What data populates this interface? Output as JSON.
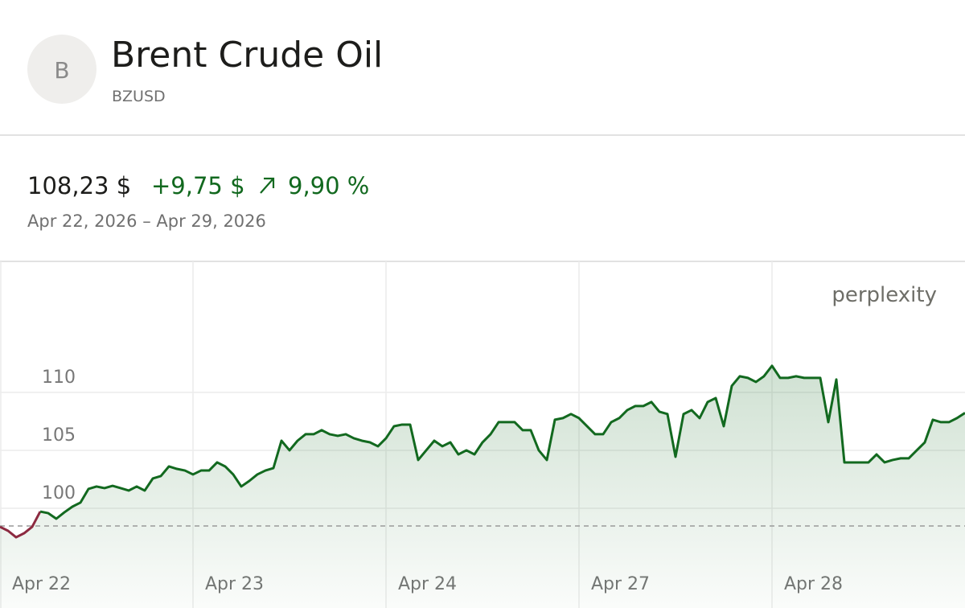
{
  "header": {
    "avatar": "B",
    "title": "Brent Crude Oil",
    "ticker": "BZUSD",
    "price": "108,23 $",
    "change": "+9,75 $",
    "change_percent": "9,90 %",
    "date_range": "Apr 22, 2026 – Apr 29, 2026"
  },
  "chart_data": {
    "type": "line",
    "watermark": "perplexity",
    "xtick_labels": [
      "Apr 22",
      "Apr 23",
      "Apr 24",
      "Apr 27",
      "Apr 28"
    ],
    "ylim": [
      91.4,
      121.3
    ],
    "yticks": [
      100,
      105,
      110
    ],
    "grid": true,
    "baseline": 98.48,
    "color": "#12691f",
    "below_color": "#8c2a40",
    "values": [
      98.4,
      98.06,
      97.5,
      97.85,
      98.4,
      99.72,
      99.58,
      99.1,
      99.65,
      100.14,
      100.49,
      101.67,
      101.88,
      101.74,
      101.94,
      101.74,
      101.53,
      101.88,
      101.53,
      102.57,
      102.78,
      103.61,
      103.4,
      103.26,
      102.92,
      103.26,
      103.26,
      103.96,
      103.61,
      102.92,
      101.88,
      102.36,
      102.92,
      103.26,
      103.47,
      105.83,
      105.0,
      105.83,
      106.39,
      106.39,
      106.74,
      106.39,
      106.25,
      106.39,
      106.04,
      105.83,
      105.69,
      105.35,
      106.04,
      107.08,
      107.22,
      107.22,
      104.17,
      105.0,
      105.83,
      105.35,
      105.69,
      104.65,
      105.0,
      104.65,
      105.69,
      106.39,
      107.43,
      107.43,
      107.43,
      106.74,
      106.74,
      105.0,
      104.17,
      107.64,
      107.78,
      108.13,
      107.78,
      107.08,
      106.39,
      106.39,
      107.43,
      107.78,
      108.47,
      108.82,
      108.82,
      109.17,
      108.33,
      108.13,
      104.44,
      108.13,
      108.47,
      107.78,
      109.17,
      109.51,
      107.08,
      110.56,
      111.39,
      111.25,
      110.9,
      111.39,
      112.29,
      111.25,
      111.25,
      111.39,
      111.25,
      111.25,
      111.25,
      107.43,
      111.11,
      103.96,
      103.96,
      103.96,
      103.96,
      104.65,
      103.96,
      104.17,
      104.31,
      104.31,
      105.0,
      105.69,
      107.64,
      107.43,
      107.43,
      107.78,
      108.23
    ]
  }
}
